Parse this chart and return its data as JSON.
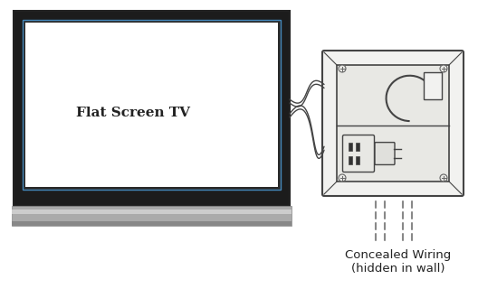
{
  "bg_color": "#ffffff",
  "figsize": [
    5.28,
    3.3
  ],
  "dpi": 100,
  "tv_label": "Flat Screen TV",
  "outlet_label": "Concealed Wiring\n(hidden in wall)",
  "line_color": "#444444",
  "screw_color": "#666666",
  "cable_color": "#555555"
}
